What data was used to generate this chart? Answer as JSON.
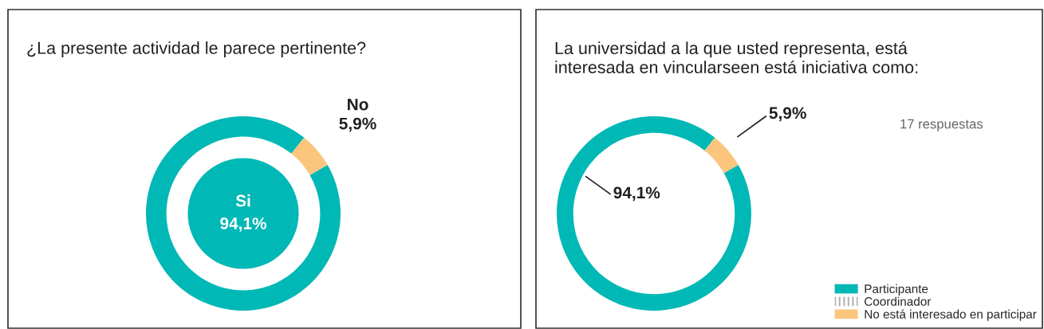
{
  "chart_data": [
    {
      "type": "donut",
      "title": "¿La presente actividad le parece pertinente?",
      "categories": [
        "Si",
        "No"
      ],
      "values": [
        94.1,
        5.9
      ],
      "colors": [
        "#00b8b5",
        "#fbc57d"
      ],
      "value_labels": [
        "94,1%",
        "5,9%"
      ]
    },
    {
      "type": "donut",
      "title": "La universidad a la que usted representa, está\ninteresada en vincularseen está iniciativa como:",
      "categories": [
        "Participante",
        "Coordinador",
        "No está interesado en participar"
      ],
      "values": [
        94.1,
        0,
        5.9
      ],
      "colors": [
        "#00b8b5",
        "#8c8c8c",
        "#fbc57d"
      ],
      "value_labels": [
        "94,1%",
        null,
        "5,9%"
      ],
      "legend": "bottom right",
      "annotations": [
        "17 respuestas"
      ]
    }
  ]
}
